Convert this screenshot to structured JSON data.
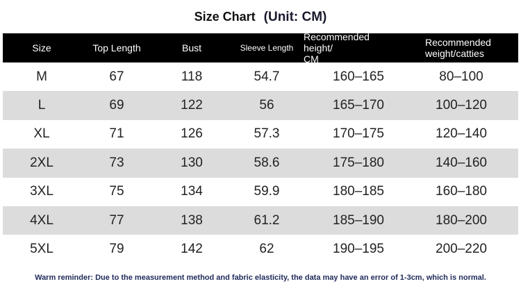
{
  "title": {
    "main": "Size Chart",
    "unit": "(Unit: CM)"
  },
  "table": {
    "header": [
      [
        "Size"
      ],
      [
        "Top Length"
      ],
      [
        "Bust"
      ],
      [
        "Sleeve Length"
      ],
      [
        "Recommended height/",
        "CM"
      ],
      [
        "Recommended",
        "weight/catties"
      ]
    ],
    "rows": [
      [
        "M",
        67,
        118,
        54.7,
        "160–165",
        "80–100"
      ],
      [
        "L",
        69,
        122,
        56,
        "165–170",
        "100–120"
      ],
      [
        "XL",
        71,
        126,
        57.3,
        "170–175",
        "120–140"
      ],
      [
        "2XL",
        73,
        130,
        58.6,
        "175–180",
        "140–160"
      ],
      [
        "3XL",
        75,
        134,
        59.9,
        "180–185",
        "160–180"
      ],
      [
        "4XL",
        77,
        138,
        61.2,
        "185–190",
        "180–200"
      ],
      [
        "5XL",
        79,
        142,
        62,
        "190–195",
        "200–220"
      ]
    ]
  },
  "footer": "Warm reminder: Due to the measurement method and fabric elasticity, the data may have an error of 1-3cm, which is normal."
}
